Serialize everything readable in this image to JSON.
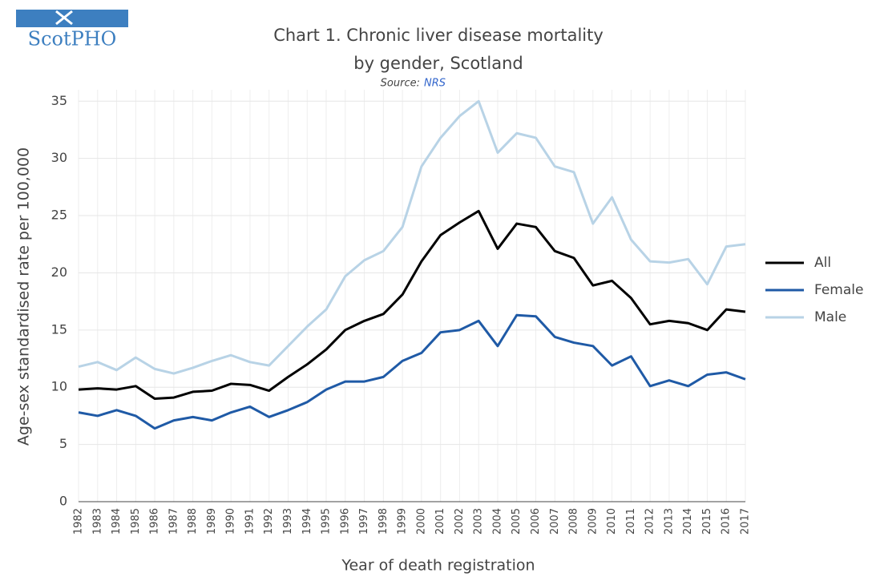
{
  "logo": "ScotPHO",
  "chart_data": {
    "type": "line",
    "title_lines": [
      "Chart 1. Chronic liver disease mortality",
      "by gender, Scotland"
    ],
    "source_label": "Source:",
    "source_link": "NRS",
    "x_label": "Year of death registration",
    "y_label": "Age-sex standardised rate per 100,000",
    "categories": [
      "1982",
      "1983",
      "1984",
      "1985",
      "1986",
      "1987",
      "1988",
      "1989",
      "1990",
      "1991",
      "1992",
      "1993",
      "1994",
      "1995",
      "1996",
      "1997",
      "1998",
      "1999",
      "2000",
      "2001",
      "2002",
      "2003",
      "2004",
      "2005",
      "2006",
      "2007",
      "2008",
      "2009",
      "2010",
      "2011",
      "2012",
      "2013",
      "2014",
      "2015",
      "2016",
      "2017"
    ],
    "series": [
      {
        "name": "All",
        "color": "#000000",
        "values": [
          9.8,
          9.9,
          9.8,
          10.1,
          9.0,
          9.1,
          9.6,
          9.7,
          10.3,
          10.2,
          9.7,
          10.9,
          12.0,
          13.3,
          15.0,
          15.8,
          16.4,
          18.1,
          21.0,
          23.3,
          24.4,
          25.4,
          22.1,
          24.3,
          24.0,
          21.9,
          21.3,
          18.9,
          19.3,
          17.8,
          15.5,
          15.8,
          15.6,
          15.0,
          16.8,
          16.6
        ]
      },
      {
        "name": "Female",
        "color": "#1f5aa6",
        "values": [
          7.8,
          7.5,
          8.0,
          7.5,
          6.4,
          7.1,
          7.4,
          7.1,
          7.8,
          8.3,
          7.4,
          8.0,
          8.7,
          9.8,
          10.5,
          10.5,
          10.9,
          12.3,
          13.0,
          14.8,
          15.0,
          15.8,
          13.6,
          16.3,
          16.2,
          14.4,
          13.9,
          13.6,
          11.9,
          12.7,
          10.1,
          10.6,
          10.1,
          11.1,
          11.3,
          10.7
        ]
      },
      {
        "name": "Male",
        "color": "#b8d3e6",
        "values": [
          11.8,
          12.2,
          11.5,
          12.6,
          11.6,
          11.2,
          11.7,
          12.3,
          12.8,
          12.2,
          11.9,
          13.6,
          15.3,
          16.8,
          19.7,
          21.1,
          21.9,
          24.0,
          29.3,
          31.8,
          33.7,
          35.0,
          30.5,
          32.2,
          31.8,
          29.3,
          28.8,
          24.3,
          26.6,
          22.9,
          21.0,
          20.9,
          21.2,
          19.0,
          22.3,
          22.5
        ]
      }
    ],
    "ylim": [
      0,
      36
    ],
    "yticks": [
      0,
      5,
      10,
      15,
      20,
      25,
      30,
      35
    ],
    "grid": true,
    "legend": "right"
  }
}
